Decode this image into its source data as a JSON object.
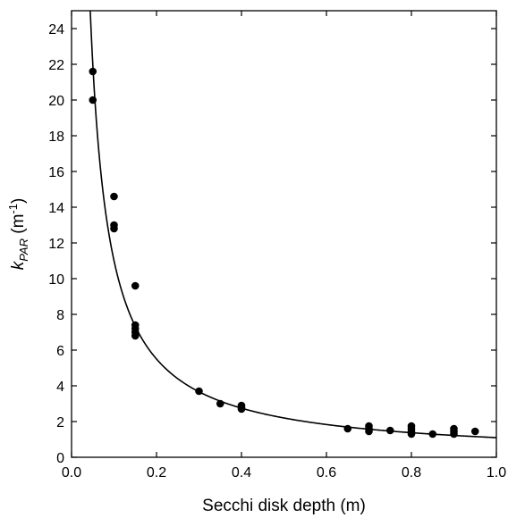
{
  "chart_data": {
    "type": "scatter",
    "title": "",
    "xlabel": "Secchi disk depth (m)",
    "ylabel": {
      "k": "k",
      "sub": "PAR",
      "unit_open": " (m",
      "unit_sup": "-1",
      "unit_close": ")"
    },
    "xlim": [
      0.0,
      1.0
    ],
    "ylim": [
      0,
      25
    ],
    "xticks": [
      "0.0",
      "0.2",
      "0.4",
      "0.6",
      "0.8",
      "1.0"
    ],
    "yticks": [
      "0",
      "2",
      "4",
      "6",
      "8",
      "10",
      "12",
      "14",
      "16",
      "18",
      "20",
      "22",
      "24"
    ],
    "grid": false,
    "legend": "none",
    "colors": {
      "points": "#000000",
      "curve": "#000000",
      "axes": "#000000"
    },
    "series": [
      {
        "kind": "points",
        "x": [
          0.05,
          0.05,
          0.1,
          0.1,
          0.1,
          0.15,
          0.15,
          0.15,
          0.15,
          0.15,
          0.3,
          0.35,
          0.4,
          0.4,
          0.4,
          0.65,
          0.7,
          0.7,
          0.7,
          0.75,
          0.8,
          0.8,
          0.8,
          0.8,
          0.85,
          0.9,
          0.9,
          0.9,
          0.95
        ],
        "y": [
          21.6,
          20.0,
          14.6,
          13.0,
          12.8,
          9.6,
          7.4,
          7.2,
          7.0,
          6.8,
          3.7,
          3.0,
          2.9,
          2.8,
          2.7,
          1.6,
          1.75,
          1.6,
          1.45,
          1.5,
          1.75,
          1.6,
          1.45,
          1.3,
          1.3,
          1.6,
          1.45,
          1.3,
          1.45
        ]
      },
      {
        "kind": "fit-curve",
        "equation": "y = 1.1 / x",
        "a": 1.1
      }
    ]
  }
}
